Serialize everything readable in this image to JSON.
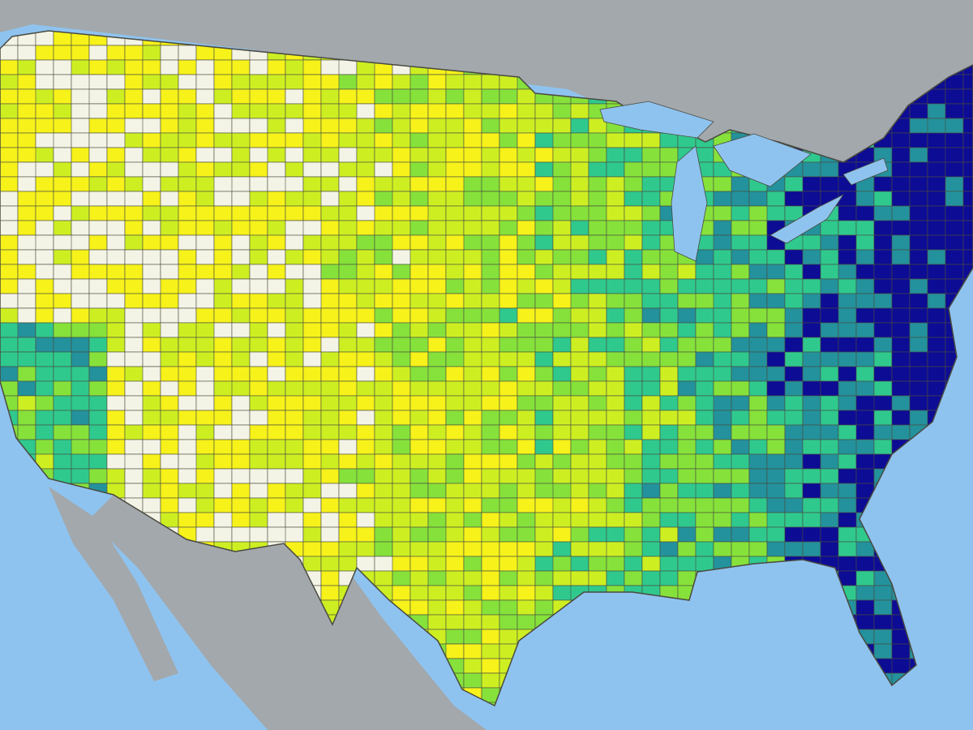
{
  "map": {
    "palette": [
      "#f4f4e6",
      "#f6f21a",
      "#cdef22",
      "#86e23a",
      "#2fc98e",
      "#23929c",
      "#0c0c95"
    ],
    "ocean": "#8fc3ef",
    "land": "#a2a8ac",
    "border": "#4a4a40"
  }
}
